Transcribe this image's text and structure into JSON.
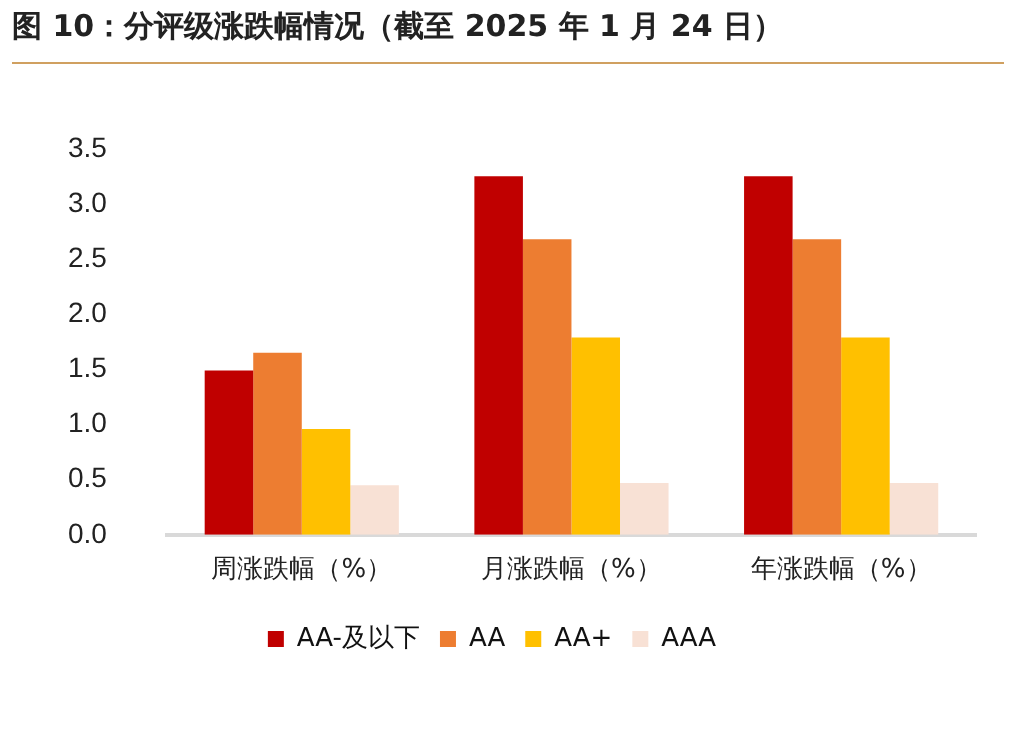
{
  "chart_data": {
    "type": "bar",
    "title": "图 10：分评级涨跌幅情况（截至 2025 年 1 月 24 日）",
    "categories": [
      "周涨跌幅（%）",
      "月涨跌幅（%）",
      "年涨跌幅（%）"
    ],
    "series": [
      {
        "name": "AA-及以下",
        "color": "#c00000",
        "values": [
          1.49,
          3.25,
          3.25
        ]
      },
      {
        "name": "AA",
        "color": "#ed7d31",
        "values": [
          1.65,
          2.68,
          2.68
        ]
      },
      {
        "name": "AA+",
        "color": "#ffc000",
        "values": [
          0.96,
          1.79,
          1.79
        ]
      },
      {
        "name": "AAA",
        "color": "#f8e1d5",
        "values": [
          0.45,
          0.47,
          0.47
        ]
      }
    ],
    "ylim": [
      0,
      3.5
    ],
    "yticks": [
      {
        "value": 0,
        "label": "0.0"
      },
      {
        "value": 0.5,
        "label": "0.5"
      },
      {
        "value": 1,
        "label": "1.0"
      },
      {
        "value": 1.5,
        "label": "1.5"
      },
      {
        "value": 2,
        "label": "2.0"
      },
      {
        "value": 2.5,
        "label": "2.5"
      },
      {
        "value": 3,
        "label": "3.0"
      },
      {
        "value": 3.5,
        "label": "3.5"
      }
    ],
    "grid": false,
    "legend": "bottom"
  }
}
